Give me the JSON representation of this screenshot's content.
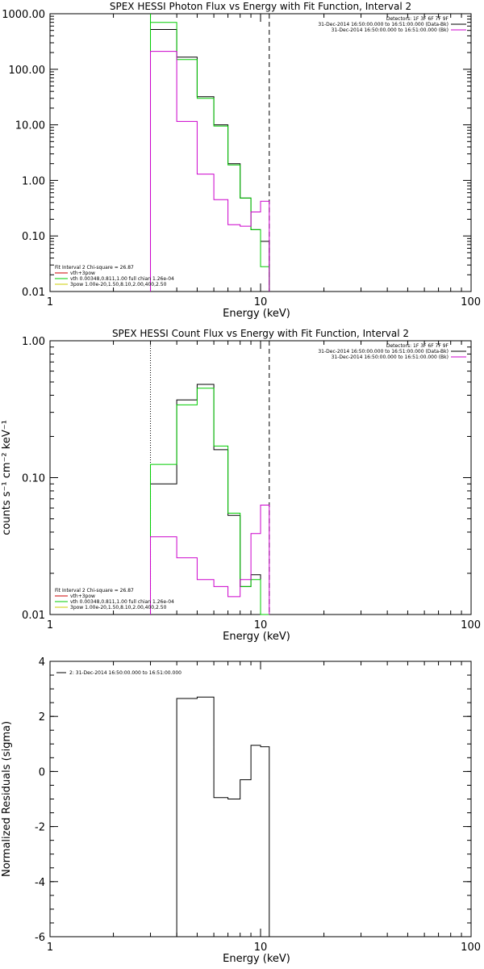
{
  "charts": [
    {
      "type": "line",
      "title": "SPEX HESSI Photon Flux vs Energy with Fit Function, Interval 2",
      "xlabel": "Energy (keV)",
      "ylabel": "",
      "x_scale": "log",
      "y_scale": "log",
      "xlim": [
        1,
        100
      ],
      "ylim": [
        0.01,
        1000
      ],
      "x_ticks": [
        {
          "v": 1,
          "label": "1"
        },
        {
          "v": 10,
          "label": "10"
        },
        {
          "v": 100,
          "label": "100"
        }
      ],
      "y_ticks": [
        {
          "v": 0.01,
          "label": "0.01"
        },
        {
          "v": 0.1,
          "label": "0.10"
        },
        {
          "v": 1,
          "label": "1.00"
        },
        {
          "v": 10,
          "label": "10.00"
        },
        {
          "v": 100,
          "label": "100.00"
        },
        {
          "v": 1000,
          "label": "1000.00"
        }
      ],
      "legend_right": [
        {
          "text": "Detectors: 1F 3F 6F 7F 9F",
          "color": ""
        },
        {
          "text": "31-Dec-2014 16:50:00.000 to 16:51:00.000 (Data-Bk)",
          "color": "#000000"
        },
        {
          "text": "31-Dec-2014 16:50:00.000 to 16:51:00.000 (Bk)",
          "color": "#cc00cc"
        }
      ],
      "legend_left": [
        {
          "text": "Fit Interval 2   Chi-square = 26.87",
          "color": ""
        },
        {
          "text": "vth+3pow",
          "color": "#cc0000"
        },
        {
          "text": "vth 0.00348,0.811,1.00   full chian 1.26e-04",
          "color": "#00cc00"
        },
        {
          "text": "3pow 1.00e-20,1.50,8.10,2.00,400,2.50",
          "color": "#cccc00"
        }
      ],
      "fit_low_line": 3,
      "fit_high_line": 11,
      "fit_low_style": "solid",
      "fit_low_color": "#00cc00",
      "edges": [
        3,
        4,
        5,
        6,
        7,
        8,
        9,
        10,
        11
      ],
      "series": [
        {
          "color": "#000000",
          "values": [
            520,
            165,
            32,
            10,
            2.0,
            0.48,
            0.13,
            0.08
          ]
        },
        {
          "color": "#00cc00",
          "values": [
            700,
            150,
            30,
            9.5,
            1.9,
            0.48,
            0.13,
            0.028
          ]
        },
        {
          "color": "#cc00cc",
          "values": [
            210,
            11.5,
            1.3,
            0.45,
            0.16,
            0.15,
            0.27,
            0.42
          ]
        }
      ]
    },
    {
      "type": "line",
      "title": "SPEX HESSI Count Flux vs Energy with Fit Function, Interval 2",
      "xlabel": "Energy (keV)",
      "ylabel": "counts s⁻¹ cm⁻² keV⁻¹",
      "x_scale": "log",
      "y_scale": "log",
      "xlim": [
        1,
        100
      ],
      "ylim": [
        0.01,
        1
      ],
      "x_ticks": [
        {
          "v": 1,
          "label": "1"
        },
        {
          "v": 10,
          "label": "10"
        },
        {
          "v": 100,
          "label": "100"
        }
      ],
      "y_ticks": [
        {
          "v": 0.01,
          "label": "0.01"
        },
        {
          "v": 0.1,
          "label": "0.10"
        },
        {
          "v": 1,
          "label": "1.00"
        }
      ],
      "legend_right": [
        {
          "text": "Detectors: 1F 3F 6F 7F 9F",
          "color": ""
        },
        {
          "text": "31-Dec-2014 16:50:00.000 to 16:51:00.000 (Data-Bk)",
          "color": "#000000"
        },
        {
          "text": "31-Dec-2014 16:50:00.000 to 16:51:00.000 (Bk)",
          "color": "#cc00cc"
        }
      ],
      "legend_left": [
        {
          "text": "Fit Interval 2   Chi-square = 26.87",
          "color": ""
        },
        {
          "text": "vth+3pow",
          "color": "#cc0000"
        },
        {
          "text": "vth 0.00348,0.811,1.00   full chian 1.26e-04",
          "color": "#00cc00"
        },
        {
          "text": "3pow 1.00e-20,1.50,8.10,2.00,400,2.50",
          "color": "#cccc00"
        }
      ],
      "fit_low_line": 3,
      "fit_high_line": 11,
      "fit_low_style": "dotted",
      "fit_low_color": "#000000",
      "edges": [
        3,
        4,
        5,
        6,
        7,
        8,
        9,
        10,
        11
      ],
      "series": [
        {
          "color": "#000000",
          "values": [
            0.09,
            0.37,
            0.48,
            0.16,
            0.053,
            0.016,
            0.0195,
            0.0095
          ]
        },
        {
          "color": "#00cc00",
          "values": [
            0.125,
            0.34,
            0.45,
            0.17,
            0.055,
            0.016,
            0.018,
            0.0095
          ]
        },
        {
          "color": "#cc00cc",
          "values": [
            0.037,
            0.026,
            0.018,
            0.016,
            0.0135,
            0.018,
            0.039,
            0.063
          ]
        }
      ]
    },
    {
      "type": "line",
      "title": "",
      "xlabel": "Energy (keV)",
      "ylabel": "Normalized Residuals (sigma)",
      "x_scale": "log",
      "y_scale": "linear",
      "xlim": [
        1,
        100
      ],
      "ylim": [
        -6,
        4
      ],
      "x_ticks": [
        {
          "v": 1,
          "label": "1"
        },
        {
          "v": 10,
          "label": "10"
        },
        {
          "v": 100,
          "label": "100"
        }
      ],
      "y_ticks": [
        {
          "v": -6,
          "label": "-6"
        },
        {
          "v": -4,
          "label": "-4"
        },
        {
          "v": -2,
          "label": "-2"
        },
        {
          "v": 0,
          "label": "0"
        },
        {
          "v": 2,
          "label": "2"
        },
        {
          "v": 4,
          "label": "4"
        }
      ],
      "legend_right": [],
      "legend_left": [],
      "legend_top": {
        "text": "2: 31-Dec-2014 16:50:00.000 to 16:51:00.000",
        "color": "#000000"
      },
      "fit_low_line": null,
      "fit_high_line": null,
      "edges": [
        3,
        4,
        5,
        6,
        7,
        8,
        9,
        10,
        11
      ],
      "series": [
        {
          "color": "#000000",
          "values": [
            -6.0,
            2.65,
            2.7,
            -0.95,
            -1.0,
            -0.3,
            0.95,
            0.9
          ]
        }
      ]
    }
  ]
}
